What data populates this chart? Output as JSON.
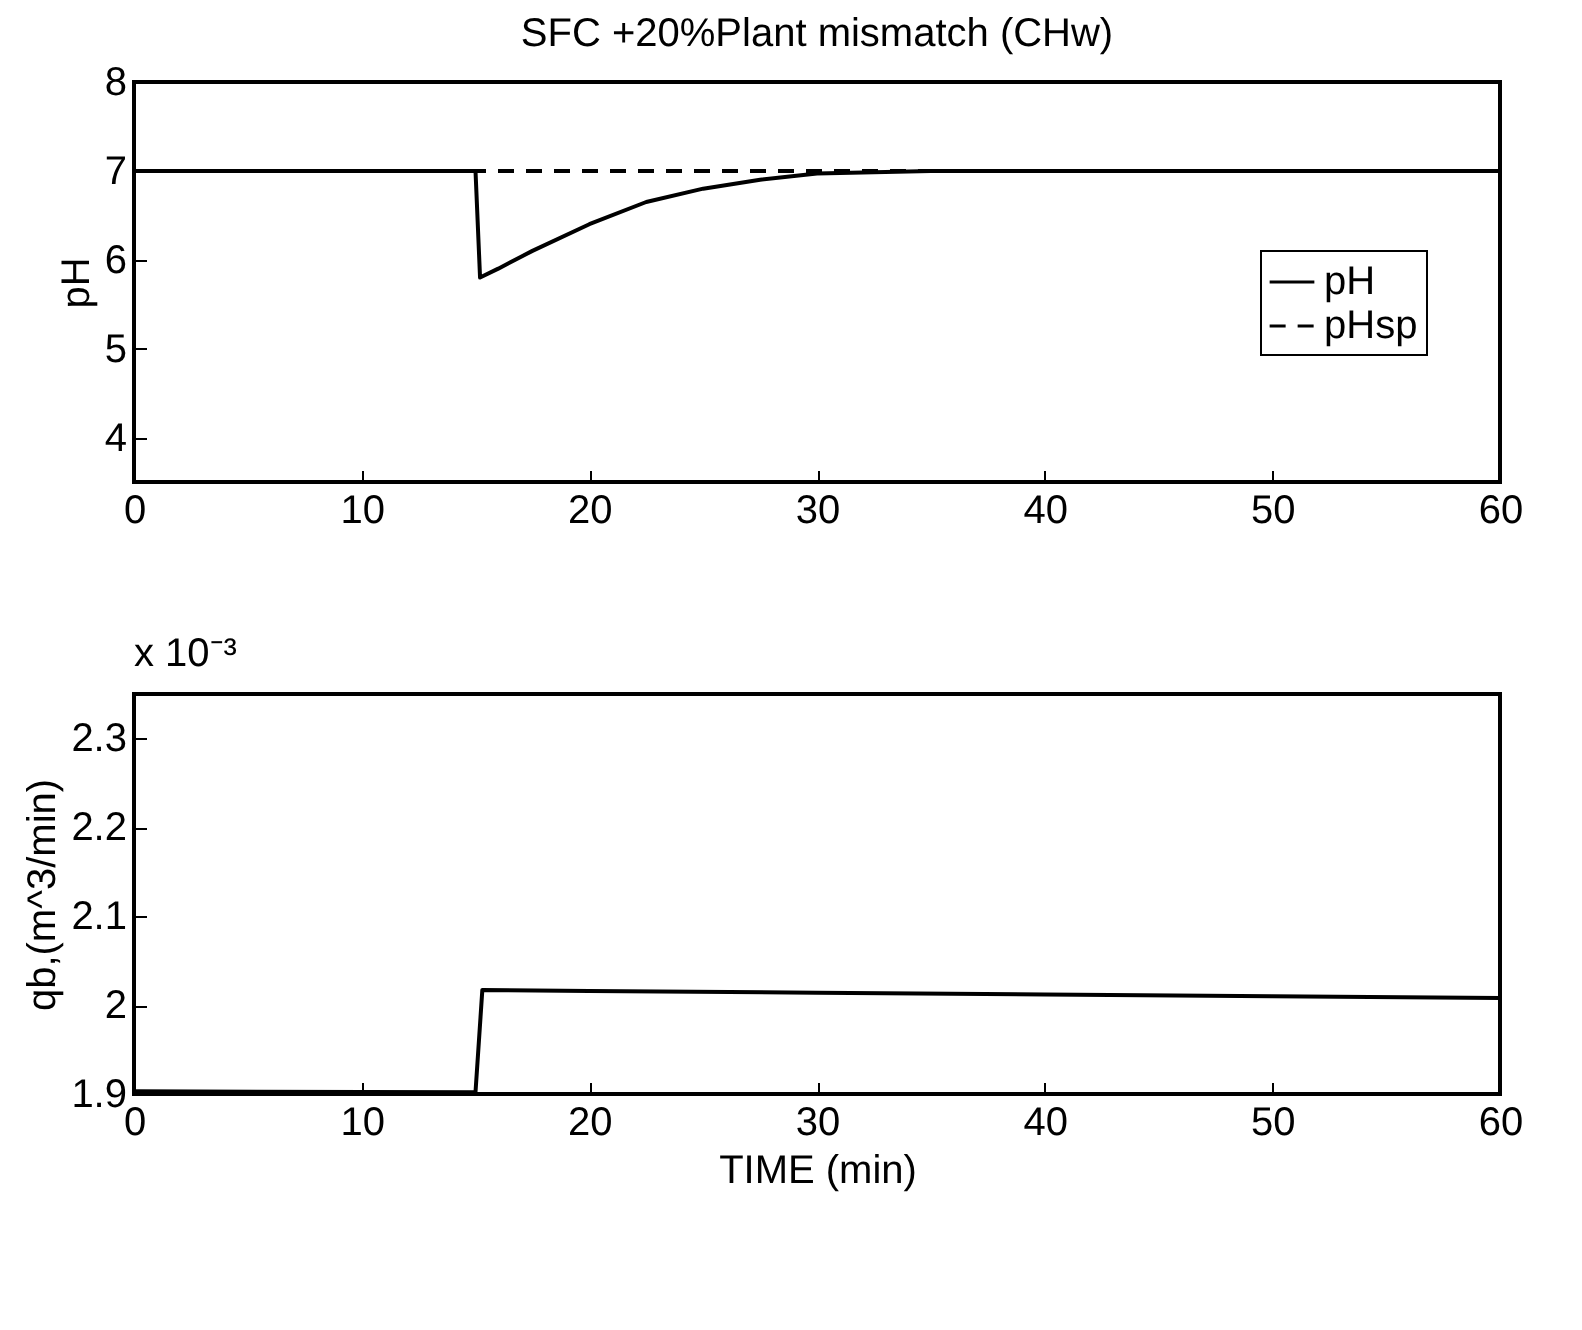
{
  "chart_data": [
    {
      "type": "line",
      "title": "SFC +20%Plant mismatch (CHw)",
      "ylabel": "pH",
      "legend": "right",
      "xlim": [
        0,
        60
      ],
      "xticks": [
        0,
        10,
        20,
        30,
        40,
        50,
        60
      ],
      "ylim": [
        3.5,
        8
      ],
      "yticks": [
        4,
        5,
        6,
        7,
        8
      ],
      "grid": false,
      "marker": "none",
      "series": [
        {
          "name": "pH",
          "color": "#000000",
          "line_style": "solid",
          "x": [
            0,
            15,
            15.2,
            16,
            17.5,
            20,
            22.5,
            25,
            27.5,
            30,
            35,
            40,
            60
          ],
          "values": [
            7.0,
            7.0,
            5.8,
            5.9,
            6.1,
            6.4,
            6.65,
            6.8,
            6.9,
            6.97,
            7.0,
            7.0,
            7.0
          ]
        },
        {
          "name": "pHsp",
          "color": "#000000",
          "line_style": "dashed",
          "x": [
            0,
            60
          ],
          "values": [
            7.0,
            7.0
          ]
        }
      ]
    },
    {
      "type": "line",
      "xlabel": "TIME (min)",
      "ylabel": "qb,(m^3/min)",
      "annotations": [
        "x 10⁻³"
      ],
      "xlim": [
        0,
        60
      ],
      "xticks": [
        0,
        10,
        20,
        30,
        40,
        50,
        60
      ],
      "ylim": [
        1.9,
        2.35
      ],
      "yticks": [
        1.9,
        2,
        2.1,
        2.2,
        2.3
      ],
      "grid": false,
      "marker": "none",
      "series": [
        {
          "color": "#000000",
          "line_style": "solid",
          "x": [
            0,
            15,
            15.3,
            20,
            30,
            40,
            50,
            60
          ],
          "values": [
            1.903,
            1.902,
            2.017,
            2.016,
            2.014,
            2.012,
            2.01,
            2.008
          ]
        }
      ]
    }
  ]
}
